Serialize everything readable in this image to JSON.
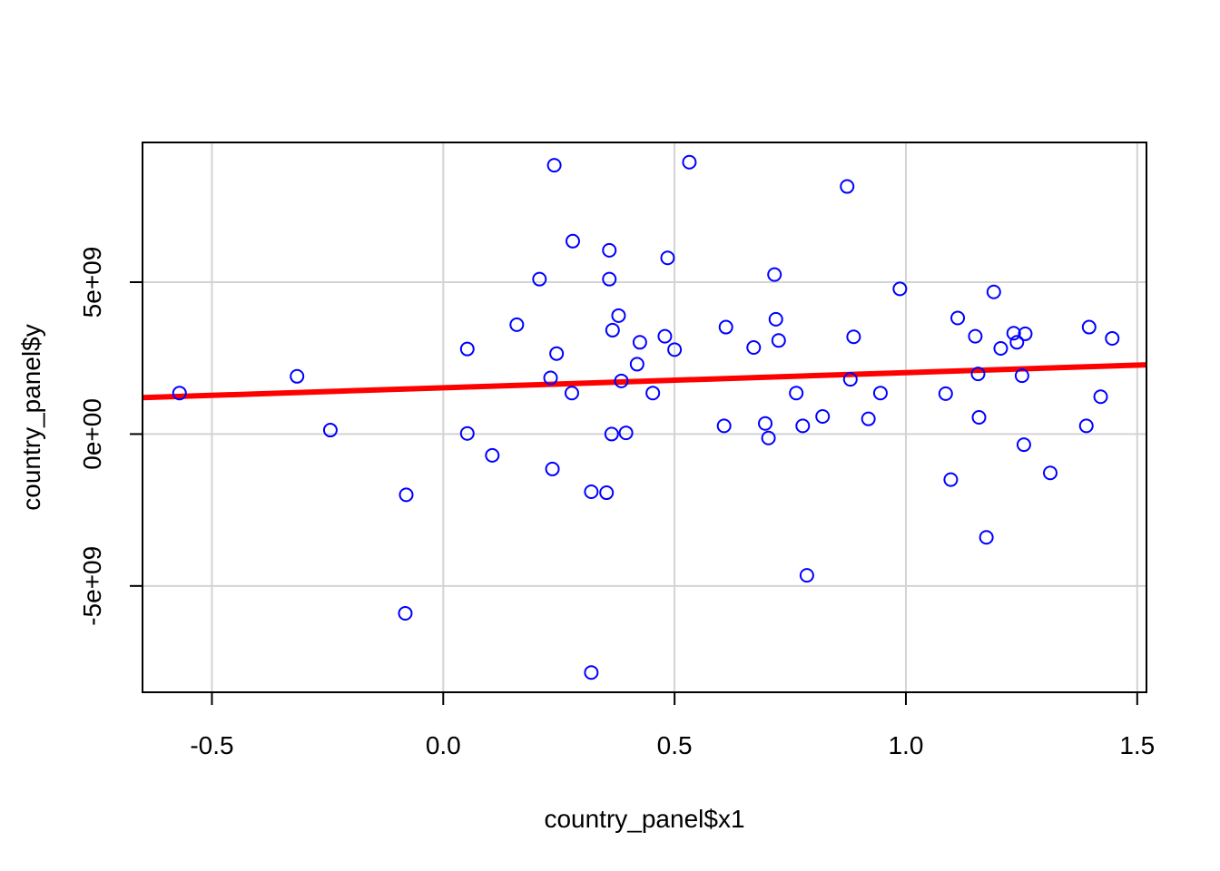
{
  "chart_data": {
    "type": "scatter",
    "title": "",
    "xlabel": "country_panel$x1",
    "ylabel": "country_panel$y",
    "xlim": [
      -0.65,
      1.52
    ],
    "ylim": [
      -8500000000.0,
      9600000000.0
    ],
    "grid": true,
    "x_ticks": [
      {
        "value": -0.5,
        "label": "-0.5"
      },
      {
        "value": 0.0,
        "label": "0.0"
      },
      {
        "value": 0.5,
        "label": "0.5"
      },
      {
        "value": 1.0,
        "label": "1.0"
      },
      {
        "value": 1.5,
        "label": "1.5"
      }
    ],
    "y_ticks": [
      {
        "value": -5000000000.0,
        "label": "-5e+09"
      },
      {
        "value": 0,
        "label": "0e+00"
      },
      {
        "value": 5000000000.0,
        "label": "5e+09"
      }
    ],
    "point_color": "#0000ff",
    "line_color": "#ff0000",
    "points": [
      {
        "x": -0.57,
        "y": 1350000000.0
      },
      {
        "x": -0.316,
        "y": 1900000000.0
      },
      {
        "x": -0.244,
        "y": 130000000.0
      },
      {
        "x": -0.08,
        "y": -2000000000.0
      },
      {
        "x": -0.082,
        "y": -5900000000.0
      },
      {
        "x": 0.052,
        "y": 2800000000.0
      },
      {
        "x": 0.052,
        "y": 20000000.0
      },
      {
        "x": 0.106,
        "y": -700000000.0
      },
      {
        "x": 0.159,
        "y": 3600000000.0
      },
      {
        "x": 0.208,
        "y": 5100000000.0
      },
      {
        "x": 0.232,
        "y": 1850000000.0
      },
      {
        "x": 0.236,
        "y": -1150000000.0
      },
      {
        "x": 0.24,
        "y": 8850000000.0
      },
      {
        "x": 0.245,
        "y": 2650000000.0
      },
      {
        "x": 0.278,
        "y": 1350000000.0
      },
      {
        "x": 0.28,
        "y": 6350000000.0
      },
      {
        "x": 0.32,
        "y": -1900000000.0
      },
      {
        "x": 0.32,
        "y": -7850000000.0
      },
      {
        "x": 0.353,
        "y": -1930000000.0
      },
      {
        "x": 0.359,
        "y": 6050000000.0
      },
      {
        "x": 0.359,
        "y": 5100000000.0
      },
      {
        "x": 0.364,
        "y": 0.0
      },
      {
        "x": 0.366,
        "y": 3420000000.0
      },
      {
        "x": 0.379,
        "y": 3900000000.0
      },
      {
        "x": 0.385,
        "y": 1750000000.0
      },
      {
        "x": 0.395,
        "y": 40000000.0
      },
      {
        "x": 0.419,
        "y": 2300000000.0
      },
      {
        "x": 0.425,
        "y": 3020000000.0
      },
      {
        "x": 0.453,
        "y": 1350000000.0
      },
      {
        "x": 0.479,
        "y": 3220000000.0
      },
      {
        "x": 0.485,
        "y": 5800000000.0
      },
      {
        "x": 0.5,
        "y": 2780000000.0
      },
      {
        "x": 0.532,
        "y": 8950000000.0
      },
      {
        "x": 0.607,
        "y": 270000000.0
      },
      {
        "x": 0.611,
        "y": 3520000000.0
      },
      {
        "x": 0.671,
        "y": 2850000000.0
      },
      {
        "x": 0.696,
        "y": 350000000.0
      },
      {
        "x": 0.703,
        "y": -130000000.0
      },
      {
        "x": 0.716,
        "y": 5250000000.0
      },
      {
        "x": 0.719,
        "y": 3780000000.0
      },
      {
        "x": 0.725,
        "y": 3080000000.0
      },
      {
        "x": 0.763,
        "y": 1350000000.0
      },
      {
        "x": 0.777,
        "y": 270000000.0
      },
      {
        "x": 0.786,
        "y": -4650000000.0
      },
      {
        "x": 0.82,
        "y": 580000000.0
      },
      {
        "x": 0.873,
        "y": 8150000000.0
      },
      {
        "x": 0.88,
        "y": 1800000000.0
      },
      {
        "x": 0.887,
        "y": 3200000000.0
      },
      {
        "x": 0.919,
        "y": 500000000.0
      },
      {
        "x": 0.945,
        "y": 1350000000.0
      },
      {
        "x": 0.987,
        "y": 4780000000.0
      },
      {
        "x": 1.086,
        "y": 1330000000.0
      },
      {
        "x": 1.097,
        "y": -1500000000.0
      },
      {
        "x": 1.112,
        "y": 3820000000.0
      },
      {
        "x": 1.15,
        "y": 3220000000.0
      },
      {
        "x": 1.156,
        "y": 1980000000.0
      },
      {
        "x": 1.158,
        "y": 550000000.0
      },
      {
        "x": 1.174,
        "y": -3400000000.0
      },
      {
        "x": 1.19,
        "y": 4680000000.0
      },
      {
        "x": 1.205,
        "y": 2820000000.0
      },
      {
        "x": 1.233,
        "y": 3320000000.0
      },
      {
        "x": 1.24,
        "y": 3020000000.0
      },
      {
        "x": 1.251,
        "y": 1920000000.0
      },
      {
        "x": 1.255,
        "y": -350000000.0
      },
      {
        "x": 1.258,
        "y": 3300000000.0
      },
      {
        "x": 1.312,
        "y": -1280000000.0
      },
      {
        "x": 1.39,
        "y": 270000000.0
      },
      {
        "x": 1.396,
        "y": 3520000000.0
      },
      {
        "x": 1.421,
        "y": 1230000000.0
      },
      {
        "x": 1.446,
        "y": 3150000000.0
      }
    ],
    "regression_line": {
      "x": [
        -0.65,
        1.52
      ],
      "y": [
        1200000000.0,
        2280000000.0
      ]
    }
  }
}
